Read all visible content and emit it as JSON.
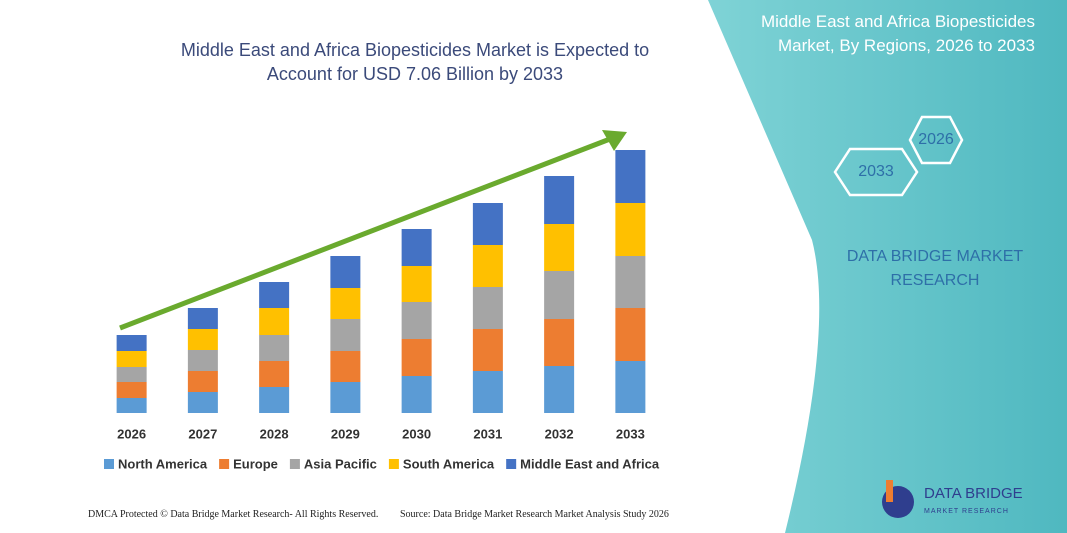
{
  "chart_data": {
    "type": "stacked_bar",
    "title": "Middle East and Africa Biopesticides Market is Expected to Account for USD 7.06 Billion by 2033",
    "categories": [
      "2026",
      "2027",
      "2028",
      "2029",
      "2030",
      "2031",
      "2032",
      "2033"
    ],
    "series": [
      {
        "name": "North America",
        "color": "#5b9bd5",
        "values": [
          15,
          21,
          26,
          31,
          37,
          42,
          47,
          52
        ]
      },
      {
        "name": "Europe",
        "color": "#ed7d31",
        "values": [
          16,
          21,
          26,
          31,
          37,
          42,
          47,
          53
        ]
      },
      {
        "name": "Asia Pacific",
        "color": "#a5a5a5",
        "values": [
          15,
          21,
          26,
          32,
          37,
          42,
          48,
          52
        ]
      },
      {
        "name": "South America",
        "color": "#ffc000",
        "values": [
          16,
          21,
          27,
          31,
          36,
          42,
          47,
          53
        ]
      },
      {
        "name": "Middle East and Africa",
        "color": "#4472c4",
        "values": [
          16,
          21,
          26,
          32,
          37,
          42,
          48,
          53
        ]
      }
    ],
    "ylim": [
      0,
      263
    ]
  },
  "panel": {
    "title": "Middle East and Africa Biopesticides Market, By Regions, 2026 to 2033",
    "hex_start": "2026",
    "hex_end": "2033",
    "brand": "DATA BRIDGE MARKET RESEARCH"
  },
  "footer": {
    "left": "DMCA Protected © Data Bridge Market Research- All Rights Reserved.",
    "right": "Source: Data Bridge Market Research Market Analysis Study 2026"
  },
  "logo": {
    "name": "DATA BRIDGE",
    "tagline": "MARKET RESEARCH"
  }
}
